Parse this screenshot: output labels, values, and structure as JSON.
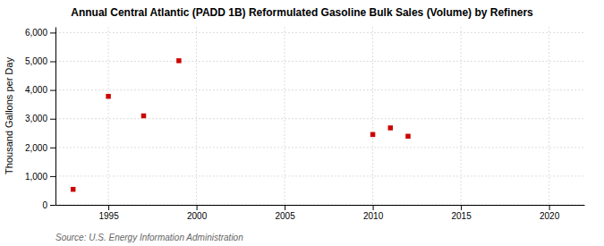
{
  "chart_data": {
    "type": "scatter",
    "title": "Annual Central Atlantic (PADD 1B) Reformulated Gasoline Bulk Sales (Volume) by Refiners",
    "y_label": "Thousand Gallons per Day",
    "annotation": "Source: U.S. Energy Information Administration",
    "x": [
      1993,
      1995,
      1997,
      1999,
      2010,
      2011,
      2012
    ],
    "values": [
      540,
      3780,
      3100,
      5020,
      2450,
      2680,
      2390
    ],
    "color": "#cc0000",
    "marker": "square",
    "xlim": [
      1992,
      2022
    ],
    "ylim": [
      0,
      6200
    ],
    "xticks": [
      1995,
      2000,
      2005,
      2010,
      2015,
      2020
    ],
    "yticks": [
      0,
      {
        "value": 1000,
        "label": "1,000"
      },
      {
        "value": 2000,
        "label": "2,000"
      },
      {
        "value": 3000,
        "label": "3,000"
      },
      {
        "value": 4000,
        "label": "4,000"
      },
      {
        "value": 5000,
        "label": "5,000"
      },
      {
        "value": 6000,
        "label": "6,000"
      }
    ],
    "grid": true
  }
}
